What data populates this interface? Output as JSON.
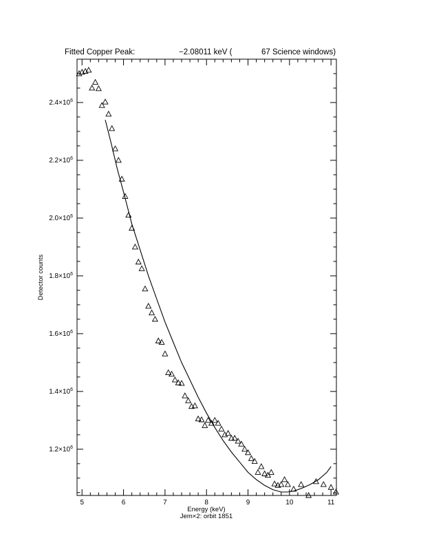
{
  "chart_data": {
    "type": "scatter",
    "title_left": "Fitted Copper Peak:",
    "title_value": "−2.08011 keV (",
    "title_right": "67 Science windows)",
    "xlabel": "Energy (keV)",
    "subcaption": "Jem×2: orbit 1851",
    "ylabel": "Detector counts",
    "xlim": [
      4.88,
      11.13
    ],
    "ylim": [
      1040000,
      2550000
    ],
    "x_ticks": [
      5,
      6,
      7,
      8,
      9,
      10,
      11
    ],
    "y_ticks": [
      {
        "value": 1200000,
        "mantissa": "1.2×10",
        "exp": "6"
      },
      {
        "value": 1400000,
        "mantissa": "1.4×10",
        "exp": "6"
      },
      {
        "value": 1600000,
        "mantissa": "1.6×10",
        "exp": "6"
      },
      {
        "value": 1800000,
        "mantissa": "1.8×10",
        "exp": "6"
      },
      {
        "value": 2000000,
        "mantissa": "2.0×10",
        "exp": "6"
      },
      {
        "value": 2200000,
        "mantissa": "2.2×10",
        "exp": "6"
      },
      {
        "value": 2400000,
        "mantissa": "2.4×10",
        "exp": "6"
      }
    ],
    "grid": false,
    "series": [
      {
        "marker": "triangle",
        "x": [
          4.93,
          5.0,
          5.08,
          5.16,
          5.24,
          5.32,
          5.4,
          5.48,
          5.56,
          5.64,
          5.72,
          5.8,
          5.88,
          5.96,
          6.04,
          6.12,
          6.2,
          6.28,
          6.36,
          6.44,
          6.52,
          6.6,
          6.68,
          6.76,
          6.84,
          6.92,
          7.0,
          7.08,
          7.16,
          7.24,
          7.32,
          7.4,
          7.48,
          7.56,
          7.64,
          7.72,
          7.8,
          7.88,
          7.96,
          8.04,
          8.12,
          8.2,
          8.28,
          8.36,
          8.44,
          8.52,
          8.6,
          8.68,
          8.76,
          8.84,
          8.92,
          9.0,
          9.08,
          9.16,
          9.24,
          9.32,
          9.4,
          9.48,
          9.56,
          9.64,
          9.72,
          9.8,
          9.88,
          9.96,
          10.1,
          10.28,
          10.46,
          10.64,
          10.82,
          11.0,
          11.12
        ],
        "y": [
          2500000,
          2505000,
          2508000,
          2512000,
          2450000,
          2470000,
          2448000,
          2390000,
          2402000,
          2360000,
          2310000,
          2240000,
          2200000,
          2135000,
          2075000,
          2010000,
          1965000,
          1900000,
          1848000,
          1825000,
          1755000,
          1695000,
          1672000,
          1650000,
          1575000,
          1570000,
          1530000,
          1465000,
          1460000,
          1440000,
          1430000,
          1428000,
          1385000,
          1368000,
          1348000,
          1350000,
          1305000,
          1302000,
          1282000,
          1300000,
          1290000,
          1300000,
          1290000,
          1270000,
          1250000,
          1255000,
          1238000,
          1238000,
          1228000,
          1218000,
          1200000,
          1188000,
          1168000,
          1158000,
          1120000,
          1140000,
          1115000,
          1110000,
          1120000,
          1080000,
          1075000,
          1078000,
          1095000,
          1078000,
          1062000,
          1078000,
          1040000,
          1088000,
          1078000,
          1068000,
          1052000
        ]
      },
      {
        "type": "line",
        "x": [
          5.56,
          5.7,
          5.85,
          6.0,
          6.2,
          6.4,
          6.6,
          6.8,
          7.0,
          7.2,
          7.4,
          7.6,
          7.8,
          8.0,
          8.2,
          8.4,
          8.6,
          8.8,
          9.0,
          9.2,
          9.4,
          9.6,
          9.8,
          9.95,
          10.1,
          10.3,
          10.5,
          10.7,
          10.9,
          11.0
        ],
        "y": [
          2340000,
          2260000,
          2170000,
          2090000,
          1980000,
          1890000,
          1800000,
          1720000,
          1640000,
          1570000,
          1500000,
          1440000,
          1380000,
          1325000,
          1275000,
          1230000,
          1190000,
          1155000,
          1120000,
          1095000,
          1075000,
          1060000,
          1052000,
          1052000,
          1055000,
          1065000,
          1078000,
          1095000,
          1120000,
          1140000
        ]
      }
    ]
  }
}
